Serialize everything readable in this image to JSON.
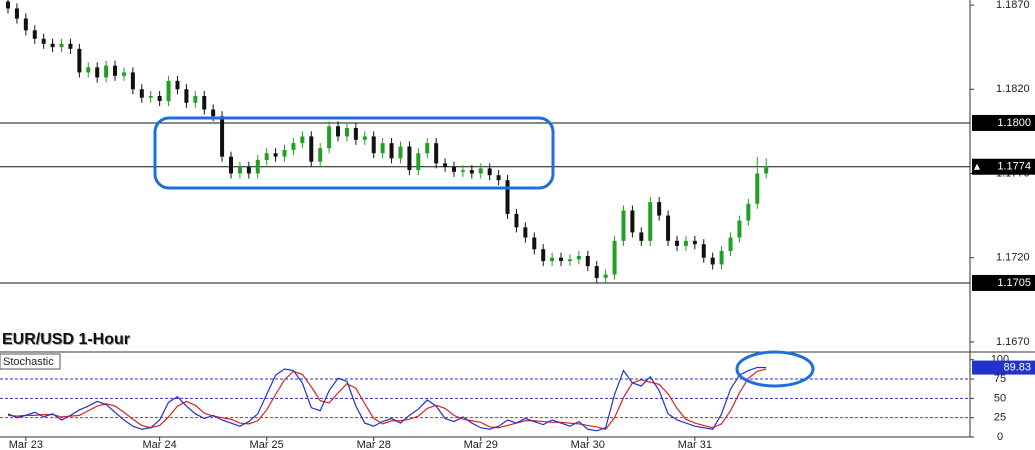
{
  "chart_data": [
    {
      "type": "candlestick",
      "title": "EUR/USD 1-Hour",
      "categories": [
        null,
        null,
        "Mar 23",
        null,
        null,
        null,
        null,
        null,
        null,
        null,
        null,
        null,
        null,
        null,
        null,
        null,
        null,
        "Mar 24",
        null,
        null,
        null,
        null,
        null,
        null,
        null,
        null,
        null,
        null,
        null,
        "Mar 25",
        null,
        null,
        null,
        null,
        null,
        null,
        null,
        null,
        null,
        null,
        null,
        "Mar 28",
        null,
        null,
        null,
        null,
        null,
        null,
        null,
        null,
        null,
        null,
        null,
        "Mar 29",
        null,
        null,
        null,
        null,
        null,
        null,
        null,
        null,
        null,
        null,
        null,
        "Mar 30",
        null,
        null,
        null,
        null,
        null,
        null,
        null,
        null,
        null,
        null,
        null,
        "Mar 31",
        null,
        null,
        null,
        null,
        null,
        null,
        null,
        null
      ],
      "open": [
        1.1872,
        1.1868,
        1.1862,
        1.1855,
        1.185,
        1.1847,
        1.1845,
        1.1847,
        1.1844,
        1.183,
        1.1833,
        1.1827,
        1.1834,
        1.1828,
        1.183,
        1.182,
        1.1815,
        1.1816,
        1.1813,
        1.1825,
        1.182,
        1.1812,
        1.1816,
        1.1808,
        1.1804,
        1.178,
        1.177,
        1.1774,
        1.177,
        1.1778,
        1.1782,
        1.178,
        1.1784,
        1.1788,
        1.1792,
        1.1777,
        1.1785,
        1.1798,
        1.1792,
        1.1797,
        1.179,
        1.1792,
        1.1782,
        1.1788,
        1.1779,
        1.1786,
        1.1772,
        1.1782,
        1.1788,
        1.1776,
        1.1774,
        1.1771,
        1.1772,
        1.177,
        1.1773,
        1.1769,
        1.1766,
        1.1746,
        1.1738,
        1.1732,
        1.1725,
        1.1718,
        1.172,
        1.1718,
        1.1719,
        1.1721,
        1.1715,
        1.1708,
        1.171,
        1.173,
        1.1748,
        1.1735,
        1.173,
        1.1753,
        1.1745,
        1.173,
        1.1727,
        1.173,
        1.1728,
        1.172,
        1.1716,
        1.1724,
        1.1732,
        1.1742,
        1.1752,
        1.177
      ],
      "high": [
        1.1875,
        1.1871,
        1.1865,
        1.1858,
        1.1853,
        1.185,
        1.185,
        1.185,
        1.1847,
        1.1836,
        1.1836,
        1.1837,
        1.1837,
        1.1833,
        1.1833,
        1.1823,
        1.1819,
        1.1819,
        1.1828,
        1.1828,
        1.1823,
        1.1819,
        1.1819,
        1.1811,
        1.1807,
        1.1783,
        1.1777,
        1.1777,
        1.1781,
        1.1785,
        1.1785,
        1.1787,
        1.1791,
        1.1795,
        1.1795,
        1.1788,
        1.1801,
        1.1801,
        1.18,
        1.18,
        1.1795,
        1.1795,
        1.1791,
        1.1791,
        1.1789,
        1.1789,
        1.1785,
        1.1791,
        1.1791,
        1.1779,
        1.1777,
        1.1775,
        1.1775,
        1.1776,
        1.1776,
        1.1772,
        1.1769,
        1.1749,
        1.1741,
        1.1735,
        1.1728,
        1.1723,
        1.1723,
        1.1722,
        1.1724,
        1.1724,
        1.1718,
        1.1713,
        1.1733,
        1.1751,
        1.1751,
        1.1738,
        1.1756,
        1.1756,
        1.1748,
        1.1733,
        1.1733,
        1.1733,
        1.1731,
        1.1723,
        1.1727,
        1.1735,
        1.1745,
        1.1755,
        1.178,
        1.1779
      ],
      "low": [
        1.1865,
        1.1859,
        1.1852,
        1.1847,
        1.1844,
        1.1842,
        1.1842,
        1.1841,
        1.1827,
        1.1827,
        1.1824,
        1.1824,
        1.1825,
        1.1825,
        1.1817,
        1.1812,
        1.1812,
        1.181,
        1.181,
        1.1817,
        1.1809,
        1.1809,
        1.1805,
        1.1801,
        1.1777,
        1.1767,
        1.1767,
        1.1767,
        1.1767,
        1.1775,
        1.1777,
        1.1777,
        1.1781,
        1.1785,
        1.1774,
        1.1774,
        1.1782,
        1.1789,
        1.1789,
        1.1787,
        1.1787,
        1.1779,
        1.1779,
        1.1776,
        1.1776,
        1.1769,
        1.1769,
        1.1779,
        1.1773,
        1.1771,
        1.1768,
        1.1768,
        1.1767,
        1.1767,
        1.1766,
        1.1763,
        1.1743,
        1.1735,
        1.1729,
        1.1722,
        1.1715,
        1.1715,
        1.1715,
        1.1715,
        1.1716,
        1.1712,
        1.1705,
        1.1705,
        1.1707,
        1.1727,
        1.1732,
        1.1727,
        1.1727,
        1.1742,
        1.1727,
        1.1724,
        1.1724,
        1.1725,
        1.1717,
        1.1713,
        1.1713,
        1.1721,
        1.1729,
        1.1739,
        1.1749,
        1.1767
      ],
      "close": [
        1.1868,
        1.1862,
        1.1855,
        1.185,
        1.1847,
        1.1845,
        1.1847,
        1.1844,
        1.183,
        1.1833,
        1.1827,
        1.1834,
        1.1828,
        1.183,
        1.182,
        1.1815,
        1.1816,
        1.1813,
        1.1825,
        1.182,
        1.1812,
        1.1816,
        1.1808,
        1.1804,
        1.178,
        1.177,
        1.1774,
        1.177,
        1.1778,
        1.1782,
        1.178,
        1.1784,
        1.1788,
        1.1792,
        1.1777,
        1.1785,
        1.1798,
        1.1792,
        1.1797,
        1.179,
        1.1792,
        1.1782,
        1.1788,
        1.1779,
        1.1786,
        1.1772,
        1.1782,
        1.1788,
        1.1776,
        1.1774,
        1.1771,
        1.1772,
        1.177,
        1.1773,
        1.1769,
        1.1766,
        1.1746,
        1.1738,
        1.1732,
        1.1725,
        1.1718,
        1.172,
        1.1718,
        1.1719,
        1.1721,
        1.1715,
        1.1708,
        1.171,
        1.173,
        1.1748,
        1.1735,
        1.173,
        1.1753,
        1.1745,
        1.173,
        1.1727,
        1.173,
        1.1728,
        1.172,
        1.1716,
        1.1724,
        1.1732,
        1.1742,
        1.1752,
        1.177,
        1.1774
      ],
      "up_color": "#22a022",
      "down_color": "#111111",
      "ylim": [
        1.1664,
        1.1873
      ],
      "yticks": [
        {
          "value": 1.187,
          "label": "1.1870"
        },
        {
          "value": 1.182,
          "label": "1.1820"
        },
        {
          "value": 1.177,
          "label": "1.1770"
        },
        {
          "value": 1.172,
          "label": "1.1720"
        },
        {
          "value": 1.167,
          "label": "1.1670"
        }
      ],
      "levels": [
        {
          "value": 1.18,
          "label": "1.1800"
        },
        {
          "value": 1.1774,
          "label": "1.1774"
        },
        {
          "value": 1.1705,
          "label": "1.1705"
        }
      ]
    },
    {
      "type": "line",
      "title": "Stochastic",
      "series": [
        {
          "color": "#2233cc",
          "values": [
            30,
            25,
            28,
            32,
            26,
            30,
            22,
            28,
            35,
            40,
            46,
            42,
            32,
            22,
            14,
            10,
            12,
            22,
            45,
            52,
            40,
            30,
            24,
            28,
            22,
            18,
            14,
            20,
            30,
            55,
            80,
            88,
            86,
            70,
            38,
            34,
            60,
            76,
            72,
            40,
            18,
            14,
            20,
            24,
            18,
            28,
            36,
            48,
            40,
            24,
            20,
            26,
            18,
            12,
            10,
            14,
            22,
            18,
            24,
            20,
            16,
            22,
            18,
            14,
            20,
            10,
            8,
            12,
            55,
            86,
            70,
            66,
            78,
            60,
            30,
            22,
            18,
            14,
            12,
            10,
            30,
            62,
            80,
            86,
            90,
            89.83
          ]
        },
        {
          "color": "#dd2222",
          "values": [
            28,
            27,
            28,
            28,
            29,
            29,
            26,
            27,
            28,
            34,
            40,
            43,
            40,
            32,
            23,
            15,
            12,
            15,
            26,
            40,
            46,
            41,
            31,
            27,
            25,
            23,
            18,
            17,
            21,
            35,
            55,
            74,
            85,
            81,
            65,
            47,
            44,
            57,
            69,
            63,
            43,
            24,
            17,
            21,
            21,
            23,
            27,
            37,
            41,
            37,
            28,
            23,
            21,
            19,
            13,
            12,
            15,
            18,
            21,
            21,
            20,
            19,
            19,
            18,
            17,
            15,
            13,
            10,
            25,
            51,
            70,
            74,
            71,
            68,
            56,
            37,
            23,
            18,
            15,
            12,
            17,
            34,
            57,
            76,
            85,
            88
          ]
        }
      ],
      "ylim": [
        0,
        110
      ],
      "yticks": [
        0,
        25,
        50,
        75,
        100
      ],
      "levels": [
        {
          "value": 75,
          "color": "#2233cc"
        },
        {
          "value": 50,
          "color": "#2233cc"
        },
        {
          "value": 25,
          "color": "#dd2222"
        }
      ]
    }
  ]
}
